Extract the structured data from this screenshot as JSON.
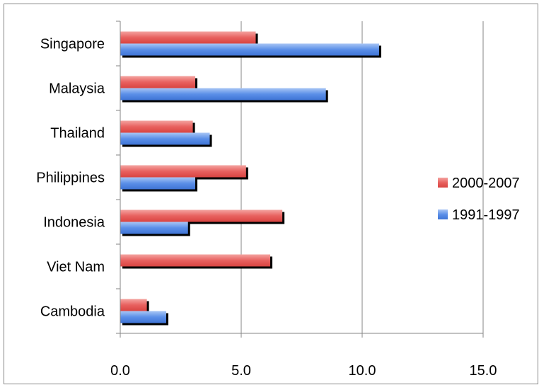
{
  "chart_data": {
    "type": "bar",
    "orientation": "horizontal",
    "categories": [
      "Singapore",
      "Malaysia",
      "Thailand",
      "Philippines",
      "Indonesia",
      "Viet Nam",
      "Cambodia"
    ],
    "series": [
      {
        "name": "2000-2007",
        "values": [
          5.6,
          3.1,
          3.0,
          5.2,
          6.7,
          6.2,
          1.1
        ],
        "color": "#e8615f"
      },
      {
        "name": "1991-1997",
        "values": [
          10.7,
          8.5,
          3.7,
          3.1,
          2.8,
          null,
          1.9
        ],
        "color": "#5b8fe8"
      }
    ],
    "xlim": [
      0,
      15
    ],
    "xticks": [
      "0.0",
      "5.0",
      "10.0",
      "15.0"
    ],
    "grid": "vertical",
    "legend": "right",
    "title": "",
    "xlabel": "",
    "ylabel": ""
  }
}
